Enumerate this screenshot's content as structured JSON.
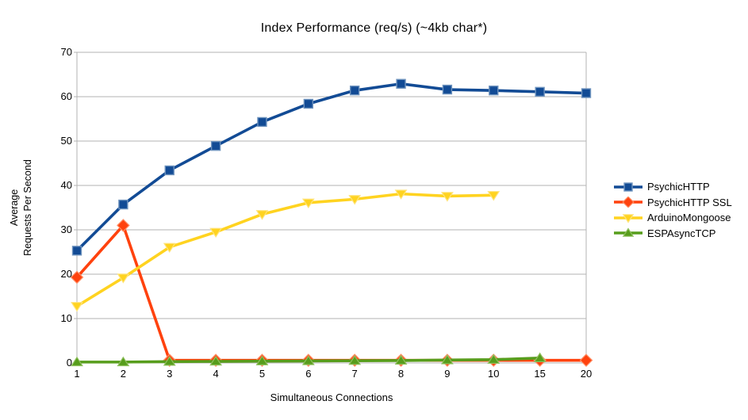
{
  "chart_data": {
    "type": "line",
    "title": "Index Performance (req/s) (~4kb char*)",
    "xlabel": "Simultaneous Connections",
    "ylabel": "Average\nRequests Per Second",
    "categories": [
      "1",
      "2",
      "3",
      "4",
      "5",
      "6",
      "7",
      "8",
      "9",
      "10",
      "15",
      "20"
    ],
    "y_ticks": [
      0,
      10,
      20,
      30,
      40,
      50,
      60,
      70
    ],
    "ylim": [
      0,
      70
    ],
    "grid": "horizontal-gridlines",
    "legend_position": "right",
    "series": [
      {
        "name": "PsychicHTTP",
        "color": "#124B95",
        "marker": "square",
        "marker_border": "#6E93BE",
        "values": [
          25.3,
          35.7,
          43.4,
          48.9,
          54.3,
          58.4,
          61.4,
          62.9,
          61.6,
          61.4,
          61.1,
          60.8
        ]
      },
      {
        "name": "PsychicHTTP SSL",
        "color": "#FF420E",
        "marker": "diamond",
        "marker_border": "#FF8F66",
        "values": [
          19.3,
          31.0,
          0.6,
          0.6,
          0.6,
          0.6,
          0.6,
          0.6,
          0.6,
          0.6,
          0.6,
          0.6
        ]
      },
      {
        "name": "ArduinoMongoose",
        "color": "#FFD320",
        "marker": "triangle-down",
        "marker_border": "#FFE47A",
        "values": [
          12.8,
          19.2,
          26.1,
          29.5,
          33.5,
          36.1,
          36.9,
          38.1,
          37.6,
          37.8,
          null,
          null
        ]
      },
      {
        "name": "ESPAsyncTCP",
        "color": "#579D1C",
        "marker": "triangle-up",
        "marker_border": "#8FC05E",
        "values": [
          0.2,
          0.2,
          0.3,
          0.35,
          0.4,
          0.45,
          0.5,
          0.55,
          0.65,
          0.75,
          1.1,
          null
        ]
      }
    ],
    "colors": {
      "grid": "#B3B3B3",
      "axis": "#B3B3B3",
      "text": "#000000",
      "background": "#FFFFFF"
    }
  }
}
